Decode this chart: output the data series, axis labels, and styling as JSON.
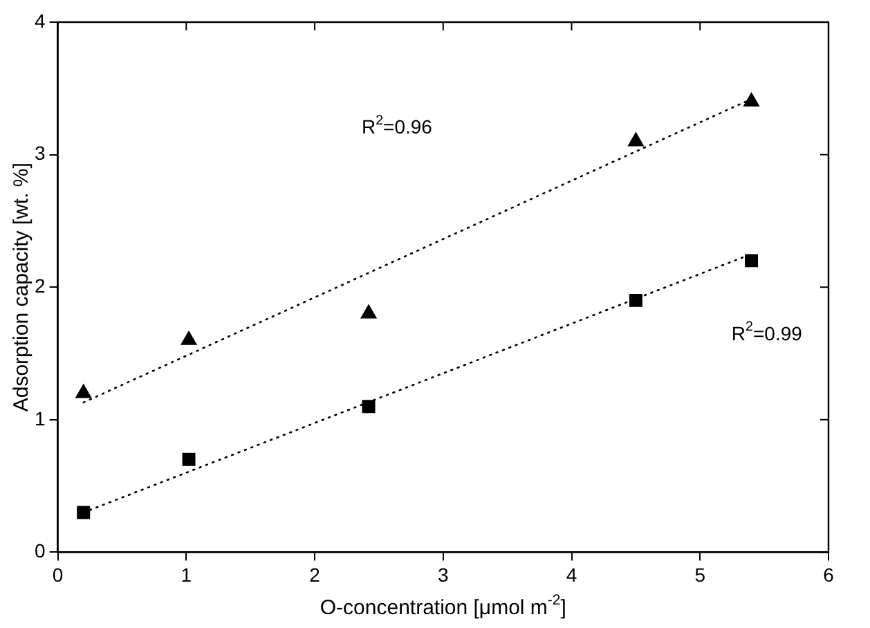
{
  "chart_data": {
    "type": "scatter",
    "xlabel": "O-concentration [μmol m$^{-2}$]",
    "ylabel": "Adsorption capacity [wt. %]",
    "xlim": [
      0,
      6
    ],
    "xticks": [
      0,
      1,
      2,
      3,
      4,
      5,
      6
    ],
    "ylim": [
      0,
      4
    ],
    "yticks": [
      0,
      1,
      2,
      3,
      4
    ],
    "grid": false,
    "legend": false,
    "series": [
      {
        "type": "scatter",
        "marker": "triangle",
        "color": "#000000",
        "x": [
          0.2,
          1.02,
          2.42,
          4.5,
          5.4
        ],
        "values": [
          1.2,
          1.6,
          1.8,
          3.1,
          3.4
        ]
      },
      {
        "type": "scatter",
        "marker": "square",
        "color": "#000000",
        "x": [
          0.2,
          1.02,
          2.42,
          4.5,
          5.4
        ],
        "values": [
          0.3,
          0.7,
          1.1,
          1.9,
          2.2
        ]
      },
      {
        "type": "line",
        "marker": "none",
        "line_style": "dotted",
        "color": "#000000",
        "x": [
          0.2,
          5.4
        ],
        "values": [
          1.13,
          3.42
        ]
      },
      {
        "type": "line",
        "marker": "none",
        "line_style": "dotted",
        "color": "#000000",
        "x": [
          0.2,
          5.4
        ],
        "values": [
          0.3,
          2.25
        ]
      }
    ],
    "annotations": [
      "R$^{2}$=0.96",
      "R$^{2}$=0.99"
    ]
  }
}
